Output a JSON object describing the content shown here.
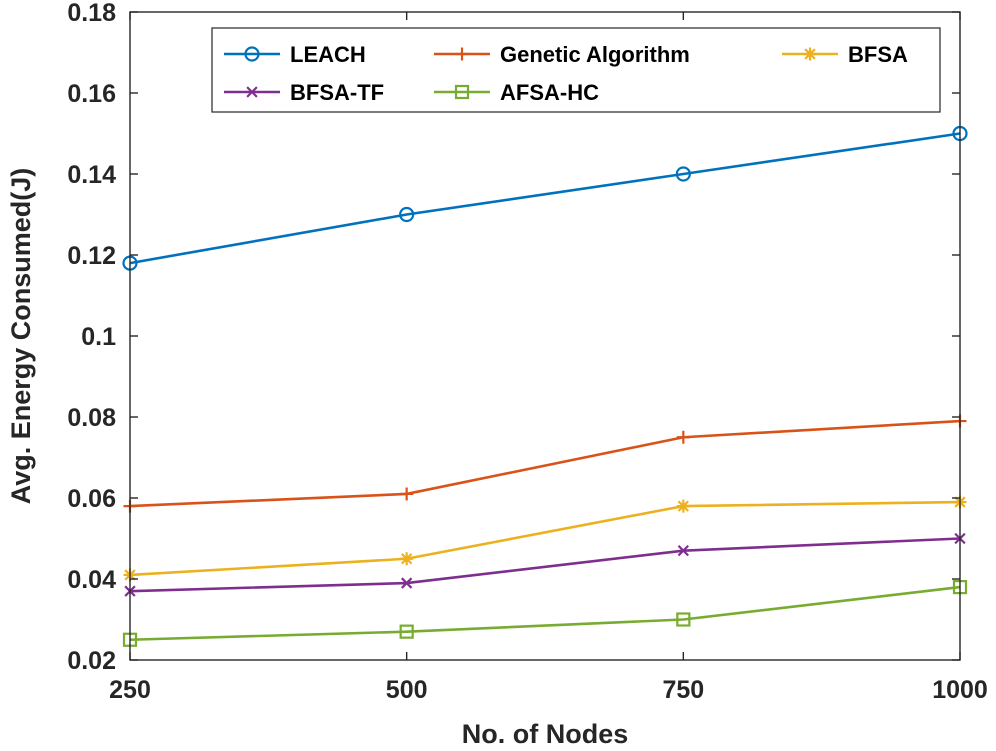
{
  "chart_data": {
    "type": "line",
    "title": "",
    "xlabel": "No. of Nodes",
    "ylabel": "Avg. Energy Consumed(J)",
    "x": [
      250,
      500,
      750,
      1000
    ],
    "xlim": [
      250,
      1000
    ],
    "ylim": [
      0.02,
      0.18
    ],
    "x_ticks": [
      "250",
      "500",
      "750",
      "1000"
    ],
    "y_ticks": [
      "0.02",
      "0.04",
      "0.06",
      "0.08",
      "0.1",
      "0.12",
      "0.14",
      "0.16",
      "0.18"
    ],
    "grid": false,
    "legend_position": "top-right",
    "series": [
      {
        "name": "LEACH",
        "marker": "circle",
        "color": "#0072BD",
        "values": [
          0.118,
          0.13,
          0.14,
          0.15
        ]
      },
      {
        "name": "Genetic Algorithm",
        "marker": "plus",
        "color": "#D95319",
        "values": [
          0.058,
          0.061,
          0.075,
          0.079
        ]
      },
      {
        "name": "BFSA",
        "marker": "asterisk",
        "color": "#EDB120",
        "values": [
          0.041,
          0.045,
          0.058,
          0.059
        ]
      },
      {
        "name": "BFSA-TF",
        "marker": "x",
        "color": "#7E2F8E",
        "values": [
          0.037,
          0.039,
          0.047,
          0.05
        ]
      },
      {
        "name": "AFSA-HC",
        "marker": "square",
        "color": "#77AC30",
        "values": [
          0.025,
          0.027,
          0.03,
          0.038
        ]
      }
    ]
  }
}
